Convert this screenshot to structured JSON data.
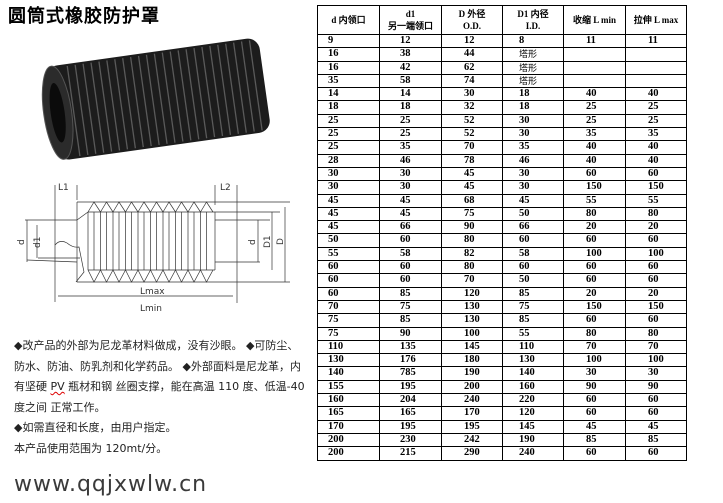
{
  "title": "圆筒式橡胶防护罩",
  "drawing_labels": {
    "L1": "L1",
    "L2": "L2",
    "d_left": "d",
    "d1_left": "d1",
    "d_right": "d",
    "D1_right": "D1",
    "D_right": "D",
    "Lmax": "Lmax",
    "Lmin": "Lmin"
  },
  "description": [
    "◆改产品的外部为尼龙革材料做成，没有沙眼。 ◆可防尘、防水、防油、防乳剂和化学药品。 ◆外部面料是尼龙革，内有坚硬",
    "PV",
    "瓶材和钢 丝圈支撑，能在高温 110 度、低温-40 度之间  正常工作。",
    "◆如需直径和长度，由用户指定。",
    "本产品使用范围为 120mt/分。"
  ],
  "table": {
    "headers": [
      {
        "top": "",
        "bottom": "d 内领口"
      },
      {
        "top": "d1",
        "bottom": "另一端领口"
      },
      {
        "top": "D 外径",
        "bottom": "O.D."
      },
      {
        "top": "D1 内径",
        "bottom": "I.D."
      },
      {
        "top": "收缩 L min",
        "bottom": ""
      },
      {
        "top": "拉伸 L max",
        "bottom": ""
      }
    ],
    "rows": [
      [
        "9",
        "12",
        "12",
        "8",
        "11",
        "11"
      ],
      [
        "16",
        "38",
        "44",
        "塔形",
        "",
        ""
      ],
      [
        "16",
        "42",
        "62",
        "塔形",
        "",
        ""
      ],
      [
        "35",
        "58",
        "74",
        "塔形",
        "",
        ""
      ],
      [
        "14",
        "14",
        "30",
        "18",
        "40",
        "40"
      ],
      [
        "18",
        "18",
        "32",
        "18",
        "25",
        "25"
      ],
      [
        "25",
        "25",
        "52",
        "30",
        "25",
        "25"
      ],
      [
        "25",
        "25",
        "52",
        "30",
        "35",
        "35"
      ],
      [
        "25",
        "35",
        "70",
        "35",
        "40",
        "40"
      ],
      [
        "28",
        "46",
        "78",
        "46",
        "40",
        "40"
      ],
      [
        "30",
        "30",
        "45",
        "30",
        "60",
        "60"
      ],
      [
        "30",
        "30",
        "45",
        "30",
        "150",
        "150"
      ],
      [
        "45",
        "45",
        "68",
        "45",
        "55",
        "55"
      ],
      [
        "45",
        "45",
        "75",
        "50",
        "80",
        "80"
      ],
      [
        "45",
        "66",
        "90",
        "66",
        "20",
        "20"
      ],
      [
        "50",
        "60",
        "80",
        "60",
        "60",
        "60"
      ],
      [
        "55",
        "58",
        "82",
        "58",
        "100",
        "100"
      ],
      [
        "60",
        "60",
        "80",
        "60",
        "60",
        "60"
      ],
      [
        "60",
        "60",
        "70",
        "50",
        "60",
        "60"
      ],
      [
        "60",
        "85",
        "120",
        "85",
        "20",
        "20"
      ],
      [
        "70",
        "75",
        "130",
        "75",
        "150",
        "150"
      ],
      [
        "75",
        "85",
        "130",
        "85",
        "60",
        "60"
      ],
      [
        "75",
        "90",
        "100",
        "55",
        "80",
        "80"
      ],
      [
        "110",
        "135",
        "145",
        "110",
        "70",
        "70"
      ],
      [
        "130",
        "176",
        "180",
        "130",
        "100",
        "100"
      ],
      [
        "140",
        "785",
        "190",
        "140",
        "30",
        "30"
      ],
      [
        "155",
        "195",
        "200",
        "160",
        "90",
        "90"
      ],
      [
        "160",
        "204",
        "240",
        "220",
        "60",
        "60"
      ],
      [
        "165",
        "165",
        "170",
        "120",
        "60",
        "60"
      ],
      [
        "170",
        "195",
        "195",
        "145",
        "45",
        "45"
      ],
      [
        "200",
        "230",
        "242",
        "190",
        "85",
        "85"
      ],
      [
        "200",
        "215",
        "290",
        "240",
        "60",
        "60"
      ]
    ]
  },
  "watermark": "www.qqjxwlw.cn"
}
